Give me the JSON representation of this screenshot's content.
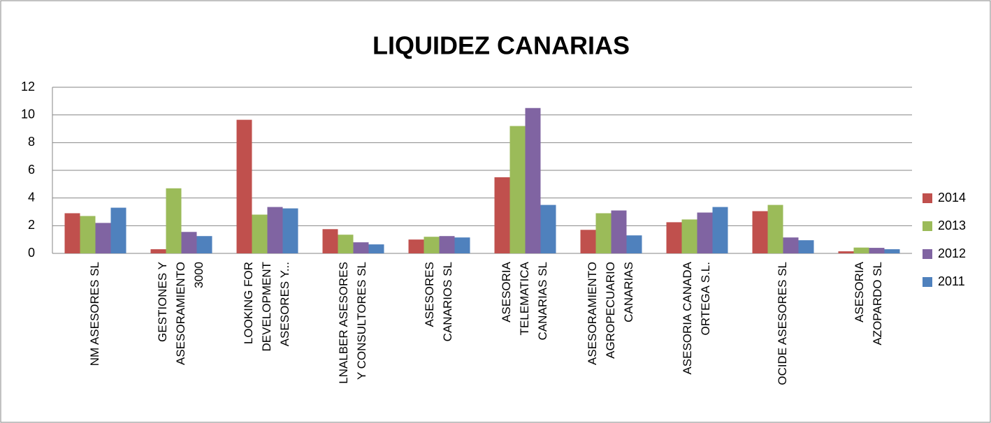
{
  "chart_data": {
    "type": "bar",
    "title": "LIQUIDEZ CANARIAS",
    "categories": [
      [
        "NM ASESORES SL"
      ],
      [
        "GESTIONES Y",
        "ASESORAMIENTO",
        "3000"
      ],
      [
        "LOOKING FOR",
        "DEVELOPMENT",
        "ASESORES Y..."
      ],
      [
        "LNALBER ASESORES",
        "Y CONSULTORES SL"
      ],
      [
        "ASESORES",
        "CANARIOS SL"
      ],
      [
        "ASESORIA",
        "TELEMATICA",
        "CANARIAS SL"
      ],
      [
        "ASESORAMIENTO",
        "AGROPECUARIO",
        "CANARIAS"
      ],
      [
        "ASESORIA CANADA",
        "ORTEGA S.L."
      ],
      [
        "OCIDE ASESORES SL"
      ],
      [
        "ASESORIA",
        "AZOPARDO SL"
      ]
    ],
    "series": [
      {
        "name": "2014",
        "color": "#c0504d",
        "values": [
          2.9,
          0.3,
          9.65,
          1.75,
          1.0,
          5.5,
          1.7,
          2.25,
          3.05,
          0.15
        ]
      },
      {
        "name": "2013",
        "color": "#9bbb59",
        "values": [
          2.7,
          4.7,
          2.8,
          1.35,
          1.2,
          9.2,
          2.9,
          2.45,
          3.5,
          0.42
        ]
      },
      {
        "name": "2012",
        "color": "#8064a2",
        "values": [
          2.2,
          1.55,
          3.35,
          0.8,
          1.25,
          10.5,
          3.1,
          2.95,
          1.15,
          0.4
        ]
      },
      {
        "name": "2011",
        "color": "#4f81bd",
        "values": [
          3.3,
          1.25,
          3.25,
          0.65,
          1.15,
          3.5,
          1.3,
          3.35,
          0.95,
          0.3
        ]
      }
    ],
    "ylim": [
      0,
      12
    ],
    "yticks": [
      0,
      2,
      4,
      6,
      8,
      10,
      12
    ],
    "grid": true,
    "legend": "right"
  }
}
